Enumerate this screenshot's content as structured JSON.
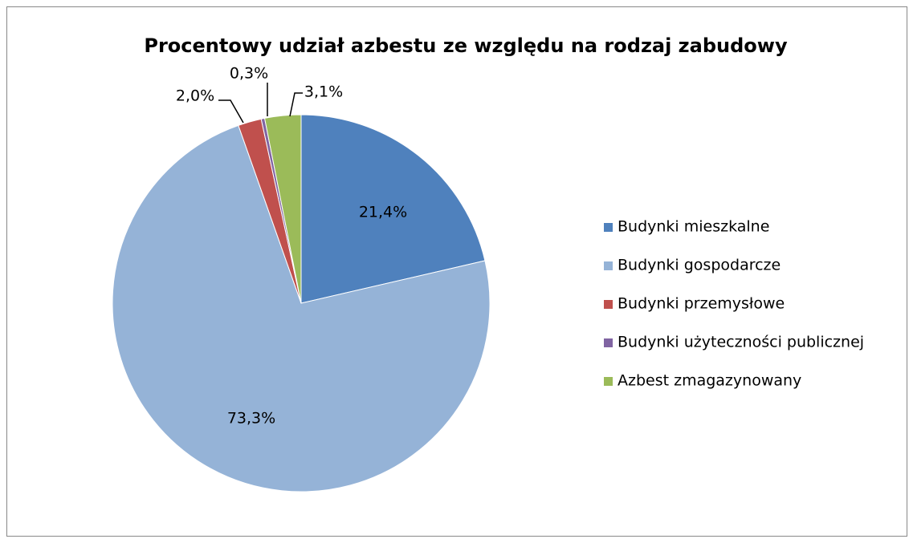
{
  "chart_data": {
    "type": "pie",
    "title": "Procentowy udział azbestu ze względu na rodzaj zabudowy",
    "categories": [
      "Budynki mieszkalne",
      "Budynki gospodarcze",
      "Budynki przemysłowe",
      "Budynki użyteczności publicznej",
      "Azbest zmagazynowany"
    ],
    "values": [
      21.4,
      73.3,
      2.0,
      0.3,
      3.1
    ],
    "value_labels": [
      "21,4%",
      "73,3%",
      "2,0%",
      "0,3%",
      "3,1%"
    ],
    "colors": [
      "#4f81bd",
      "#95b3d7",
      "#c0504d",
      "#8064a2",
      "#9bbb59"
    ],
    "legend": "right"
  }
}
